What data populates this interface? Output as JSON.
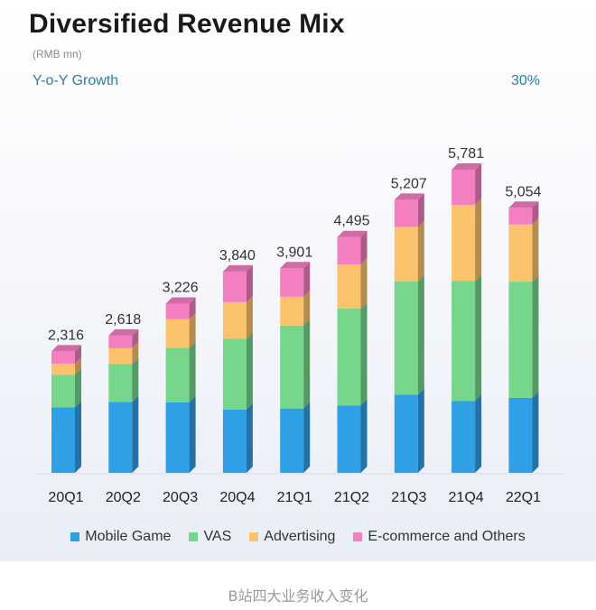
{
  "header": {
    "title": "Diversified Revenue Mix",
    "unit": "(RMB mn)",
    "growth_label": "Y-o-Y Growth",
    "growth_value": "30%"
  },
  "caption": "B站四大业务收入变化",
  "colors": {
    "mobile_game": "#2f9fe6",
    "vas": "#76d68c",
    "advertising": "#fbc36b",
    "ecommerce": "#f37fc0"
  },
  "chart_data": {
    "type": "bar",
    "stacked": true,
    "categories": [
      "20Q1",
      "20Q2",
      "20Q3",
      "20Q4",
      "21Q1",
      "21Q2",
      "21Q3",
      "21Q4",
      "22Q1"
    ],
    "totals": [
      2316,
      2618,
      3226,
      3840,
      3901,
      4495,
      5207,
      5781,
      5054
    ],
    "total_labels": [
      "2,316",
      "2,618",
      "3,226",
      "3,840",
      "3,901",
      "4,495",
      "5,207",
      "5,781",
      "5,054"
    ],
    "series": [
      {
        "name": "Mobile Game",
        "values": [
          1247,
          1353,
          1347,
          1208,
          1227,
          1284,
          1493,
          1369,
          1430
        ]
      },
      {
        "name": "VAS",
        "values": [
          622,
          723,
          1034,
          1350,
          1581,
          1848,
          2154,
          2287,
          2216
        ]
      },
      {
        "name": "Advertising",
        "values": [
          213,
          300,
          549,
          697,
          549,
          842,
          1042,
          1453,
          1090
        ]
      },
      {
        "name": "E-commerce and Others",
        "values": [
          234,
          242,
          296,
          585,
          544,
          521,
          518,
          672,
          318
        ]
      }
    ],
    "ylim": [
      0,
      6000
    ]
  },
  "legend": [
    {
      "key": "mobile_game",
      "label": "Mobile Game"
    },
    {
      "key": "vas",
      "label": "VAS"
    },
    {
      "key": "advertising",
      "label": "Advertising"
    },
    {
      "key": "ecommerce",
      "label": "E-commerce and Others"
    }
  ]
}
